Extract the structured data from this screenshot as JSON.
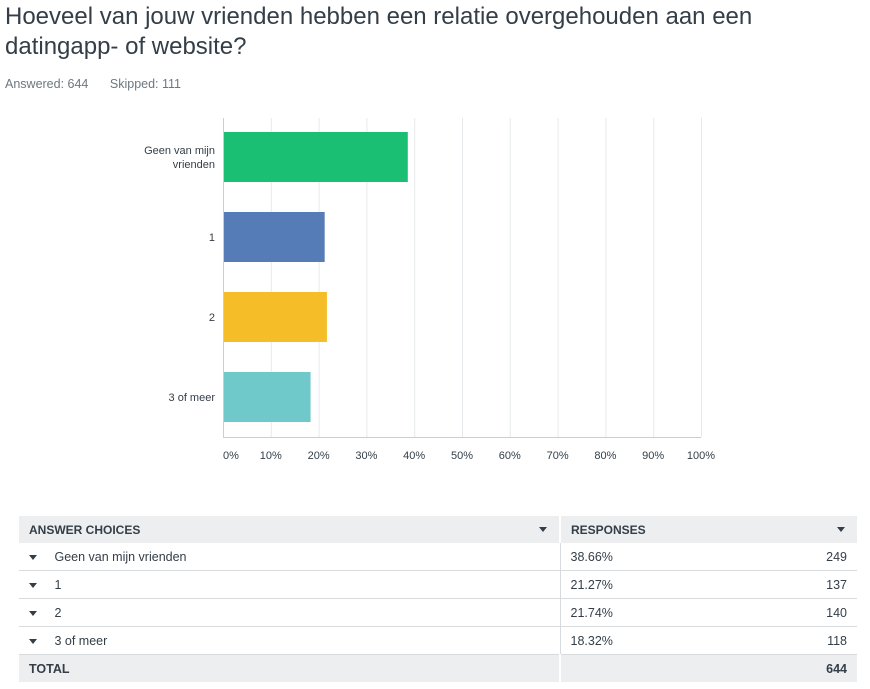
{
  "question": {
    "title": "Hoeveel van jouw vrienden hebben een relatie overgehouden aan een datingapp- of website?",
    "answered": "Answered: 644",
    "skipped": "Skipped: 111"
  },
  "chart_data": {
    "type": "bar",
    "orientation": "horizontal",
    "categories": [
      "Geen van mijn vrienden",
      "1",
      "2",
      "3 of meer"
    ],
    "category_label_lines": [
      [
        "Geen van mijn",
        "vrienden"
      ],
      [
        "1"
      ],
      [
        "2"
      ],
      [
        "3 of meer"
      ]
    ],
    "values": [
      38.66,
      21.27,
      21.74,
      18.32
    ],
    "colors": [
      "#1bbf73",
      "#557cb7",
      "#f5bd27",
      "#6fc8ca"
    ],
    "xlim": [
      0,
      100
    ],
    "xticks": [
      "0%",
      "10%",
      "20%",
      "30%",
      "40%",
      "50%",
      "60%",
      "70%",
      "80%",
      "90%",
      "100%"
    ],
    "grid": true
  },
  "table": {
    "headers": {
      "choices": "ANSWER CHOICES",
      "responses": "RESPONSES"
    },
    "rows": [
      {
        "choice": "Geen van mijn vrienden",
        "percent": "38.66%",
        "count": "249"
      },
      {
        "choice": "1",
        "percent": "21.27%",
        "count": "137"
      },
      {
        "choice": "2",
        "percent": "21.74%",
        "count": "140"
      },
      {
        "choice": "3 of meer",
        "percent": "18.32%",
        "count": "118"
      }
    ],
    "total": {
      "label": "TOTAL",
      "count": "644"
    }
  },
  "icons": {
    "sort": "chevron-down-icon",
    "row_toggle": "caret-down-icon"
  }
}
